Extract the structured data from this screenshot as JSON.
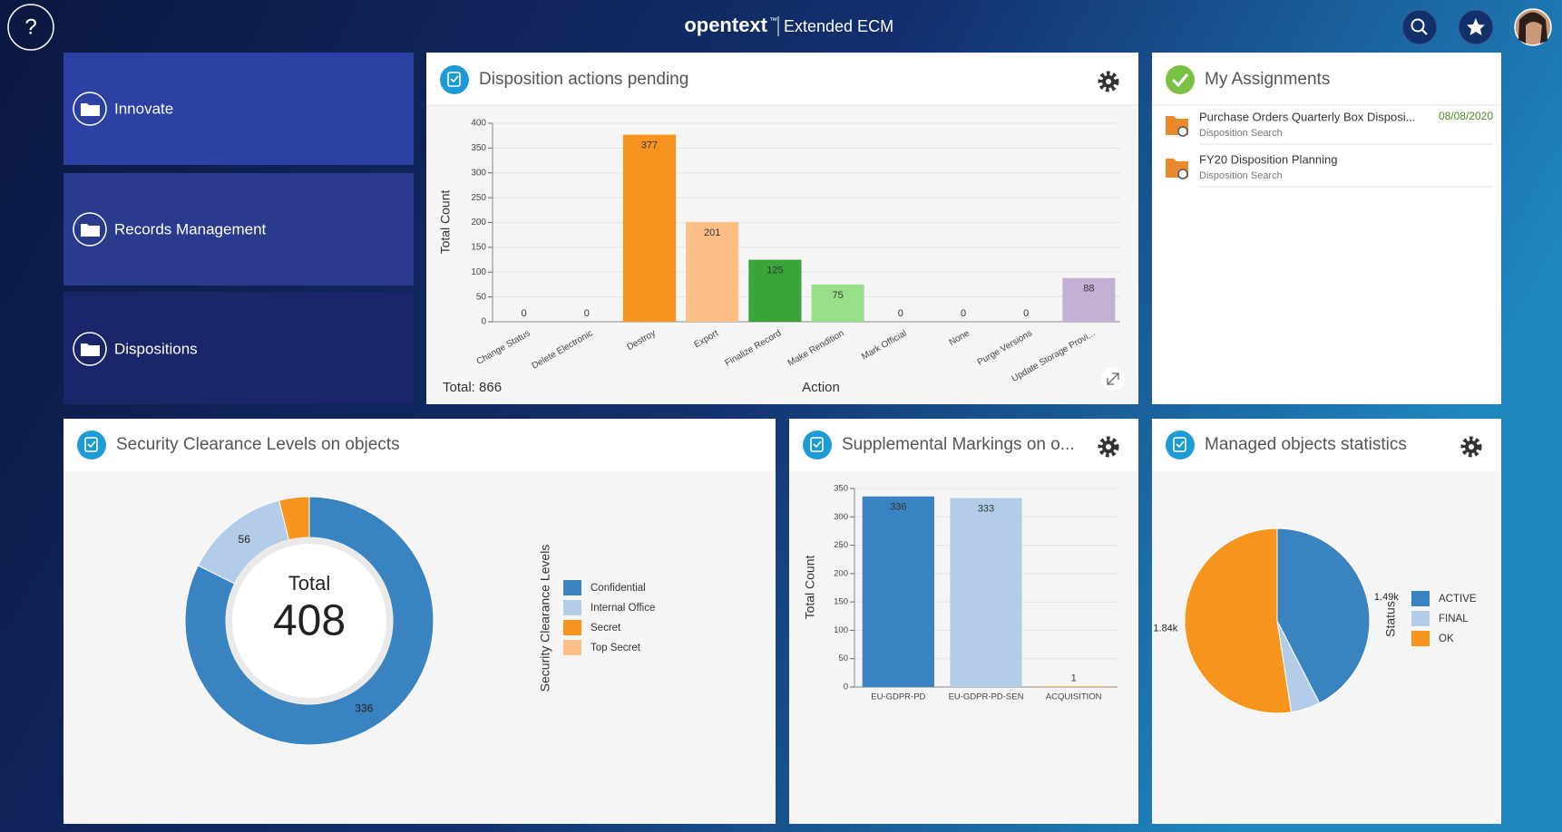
{
  "header": {
    "help": "?",
    "brand": "opentext",
    "trademark": "™",
    "product": "Extended ECM"
  },
  "nav_tiles": [
    "Innovate",
    "Records Management",
    "Dispositions"
  ],
  "assignments": {
    "title": "My Assignments",
    "items": [
      {
        "title": "Purchase Orders Quarterly Box Disposi...",
        "subtitle": "Disposition Search",
        "date": "08/08/2020"
      },
      {
        "title": "FY20 Disposition Planning",
        "subtitle": "Disposition Search"
      }
    ]
  },
  "chart_data": [
    {
      "type": "bar",
      "title": "Disposition actions pending",
      "ylabel": "Total Count",
      "xlabel": "Action",
      "footer": "Total: 866",
      "categories": [
        "Change Status",
        "Delete Electronic",
        "Destroy",
        "Export",
        "Finalize Record",
        "Make Rendition",
        "Mark Official",
        "None",
        "Purge Versions",
        "Update Storage Provi..."
      ],
      "values": [
        0,
        0,
        377,
        201,
        125,
        75,
        0,
        0,
        0,
        88
      ],
      "colors": [
        null,
        null,
        "#f7941d",
        "#fdbf86",
        "#3aa33a",
        "#98df8a",
        null,
        null,
        null,
        "#c5b0d5"
      ],
      "ylim": [
        0,
        400
      ],
      "yticks": [
        0,
        50,
        100,
        150,
        200,
        250,
        300,
        350,
        400
      ],
      "grid": true
    },
    {
      "type": "donut",
      "title": "Security Clearance Levels on objects",
      "center_label": "Total",
      "center_value": 408,
      "legend_title": "Security Clearance Levels",
      "categories": [
        "Confidential",
        "Internal Office",
        "Secret",
        "Top Secret"
      ],
      "values": [
        336,
        56,
        16,
        0
      ],
      "colors": [
        "#3a83c1",
        "#b3cde8",
        "#f7941d",
        "#fdbf86"
      ]
    },
    {
      "type": "bar",
      "title": "Supplemental Markings on o...",
      "ylabel": "Total Count",
      "categories": [
        "EU-GDPR-PD",
        "EU-GDPR-PD-SEN",
        "ACQUISITION"
      ],
      "values": [
        336,
        333,
        1
      ],
      "colors": [
        "#3a83c1",
        "#b3cde8",
        "#f7941d"
      ],
      "ylim": [
        0,
        350
      ],
      "yticks": [
        0,
        50,
        100,
        150,
        200,
        250,
        300,
        350
      ],
      "grid": true
    },
    {
      "type": "pie",
      "title": "Managed objects statistics",
      "legend_title": "Status",
      "categories": [
        "ACTIVE",
        "FINAL",
        "OK"
      ],
      "values": [
        1490,
        180,
        1840
      ],
      "value_labels": [
        "1.49k",
        null,
        "1.84k"
      ],
      "colors": [
        "#3a83c1",
        "#b3cde8",
        "#f7941d"
      ]
    }
  ]
}
